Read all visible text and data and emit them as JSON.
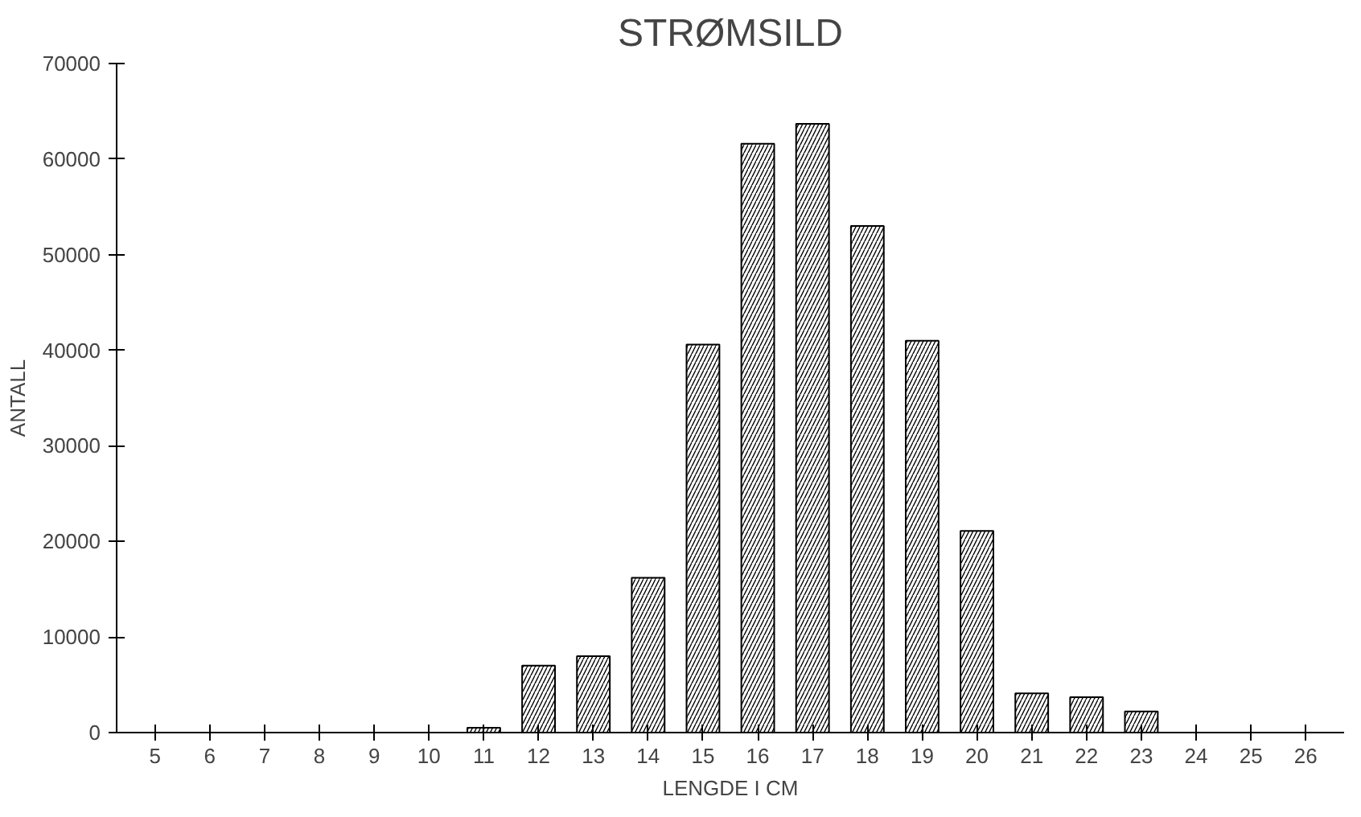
{
  "chart_data": {
    "type": "bar",
    "title": "STRØMSILD",
    "xlabel": "LENGDE I CM",
    "ylabel": "ANTALL",
    "categories": [
      "5",
      "6",
      "7",
      "8",
      "9",
      "10",
      "11",
      "12",
      "13",
      "14",
      "15",
      "16",
      "17",
      "18",
      "19",
      "20",
      "21",
      "22",
      "23",
      "24",
      "25",
      "26"
    ],
    "values": [
      0,
      0,
      0,
      0,
      0,
      0,
      500,
      7000,
      8000,
      16200,
      40600,
      61600,
      63700,
      53000,
      41000,
      21100,
      4100,
      3700,
      2200,
      0,
      0,
      0
    ],
    "color": "#000000",
    "ylim": [
      0,
      70000
    ],
    "yticks": [
      0,
      10000,
      20000,
      30000,
      40000,
      50000,
      60000,
      70000
    ],
    "grid": false
  }
}
